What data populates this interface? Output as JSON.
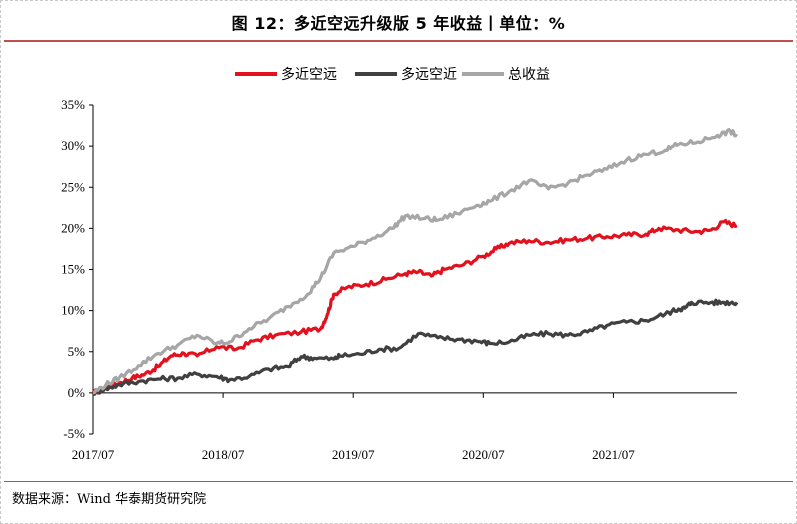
{
  "header": {
    "title": "图 12：多近空远升级版 5 年收益丨单位：%"
  },
  "footer": {
    "source": "数据来源：Wind 华泰期货研究院"
  },
  "colors": {
    "series_red": "#e3101e",
    "series_dark": "#404040",
    "series_gray": "#a6a6a6",
    "rule": "#c0504d"
  },
  "chart_data": {
    "type": "line",
    "title": "",
    "xlabel": "",
    "ylabel": "",
    "ylim": [
      -5,
      35
    ],
    "y_ticks": [
      -5,
      0,
      5,
      10,
      15,
      20,
      25,
      30,
      35
    ],
    "y_tick_labels": [
      "-5%",
      "0%",
      "5%",
      "10%",
      "15%",
      "20%",
      "25%",
      "30%",
      "35%"
    ],
    "x_range": [
      2017.5,
      2022.45
    ],
    "x_ticks": [
      2017.5,
      2018.5,
      2019.5,
      2020.5,
      2021.5
    ],
    "x_tick_labels": [
      "2017/07",
      "2018/07",
      "2019/07",
      "2020/07",
      "2021/07"
    ],
    "grid": false,
    "legend_position": "top",
    "series": [
      {
        "name": "多近空远",
        "color": "#e3101e",
        "points": [
          [
            2017.5,
            0.0
          ],
          [
            2017.6,
            0.6
          ],
          [
            2017.7,
            1.2
          ],
          [
            2017.8,
            1.8
          ],
          [
            2017.9,
            2.3
          ],
          [
            2018.0,
            3.2
          ],
          [
            2018.1,
            4.5
          ],
          [
            2018.2,
            4.8
          ],
          [
            2018.3,
            4.5
          ],
          [
            2018.45,
            5.6
          ],
          [
            2018.6,
            5.3
          ],
          [
            2018.75,
            6.4
          ],
          [
            2018.9,
            7.0
          ],
          [
            2019.1,
            7.4
          ],
          [
            2019.25,
            7.8
          ],
          [
            2019.3,
            9.5
          ],
          [
            2019.35,
            12.0
          ],
          [
            2019.45,
            12.8
          ],
          [
            2019.6,
            13.2
          ],
          [
            2019.75,
            13.8
          ],
          [
            2019.9,
            14.5
          ],
          [
            2020.0,
            14.7
          ],
          [
            2020.1,
            14.2
          ],
          [
            2020.2,
            15.0
          ],
          [
            2020.35,
            15.6
          ],
          [
            2020.5,
            16.6
          ],
          [
            2020.6,
            17.5
          ],
          [
            2020.7,
            18.2
          ],
          [
            2020.85,
            18.5
          ],
          [
            2021.0,
            18.3
          ],
          [
            2021.15,
            18.6
          ],
          [
            2021.3,
            18.8
          ],
          [
            2021.45,
            19.0
          ],
          [
            2021.6,
            19.2
          ],
          [
            2021.75,
            19.3
          ],
          [
            2021.85,
            20.0
          ],
          [
            2022.0,
            19.8
          ],
          [
            2022.15,
            19.6
          ],
          [
            2022.25,
            19.8
          ],
          [
            2022.35,
            20.8
          ],
          [
            2022.45,
            20.3
          ]
        ]
      },
      {
        "name": "多远空近",
        "color": "#404040",
        "points": [
          [
            2017.5,
            0.0
          ],
          [
            2017.6,
            0.5
          ],
          [
            2017.7,
            1.0
          ],
          [
            2017.85,
            1.4
          ],
          [
            2018.0,
            1.7
          ],
          [
            2018.15,
            1.8
          ],
          [
            2018.3,
            2.3
          ],
          [
            2018.45,
            2.0
          ],
          [
            2018.55,
            1.6
          ],
          [
            2018.7,
            2.0
          ],
          [
            2018.85,
            2.9
          ],
          [
            2019.0,
            3.2
          ],
          [
            2019.1,
            4.4
          ],
          [
            2019.2,
            4.2
          ],
          [
            2019.35,
            4.1
          ],
          [
            2019.4,
            4.5
          ],
          [
            2019.55,
            4.7
          ],
          [
            2019.7,
            5.3
          ],
          [
            2019.85,
            5.4
          ],
          [
            2020.0,
            7.2
          ],
          [
            2020.15,
            6.7
          ],
          [
            2020.3,
            6.5
          ],
          [
            2020.45,
            6.3
          ],
          [
            2020.55,
            6.0
          ],
          [
            2020.7,
            6.2
          ],
          [
            2020.85,
            7.0
          ],
          [
            2021.0,
            7.2
          ],
          [
            2021.15,
            7.0
          ],
          [
            2021.3,
            7.4
          ],
          [
            2021.45,
            8.2
          ],
          [
            2021.6,
            8.6
          ],
          [
            2021.75,
            8.8
          ],
          [
            2021.9,
            9.6
          ],
          [
            2022.0,
            10.2
          ],
          [
            2022.05,
            10.3
          ],
          [
            2022.1,
            11.0
          ],
          [
            2022.25,
            11.0
          ],
          [
            2022.35,
            11.0
          ],
          [
            2022.45,
            11.0
          ]
        ]
      },
      {
        "name": "总收益",
        "color": "#a6a6a6",
        "points": [
          [
            2017.5,
            0.0
          ],
          [
            2017.6,
            1.0
          ],
          [
            2017.7,
            1.8
          ],
          [
            2017.85,
            3.3
          ],
          [
            2018.0,
            4.8
          ],
          [
            2018.15,
            5.8
          ],
          [
            2018.3,
            7.0
          ],
          [
            2018.45,
            6.0
          ],
          [
            2018.55,
            6.2
          ],
          [
            2018.7,
            7.8
          ],
          [
            2018.85,
            9.0
          ],
          [
            2019.0,
            10.5
          ],
          [
            2019.15,
            12.0
          ],
          [
            2019.25,
            14.0
          ],
          [
            2019.35,
            17.0
          ],
          [
            2019.5,
            17.8
          ],
          [
            2019.65,
            18.8
          ],
          [
            2019.8,
            20.0
          ],
          [
            2019.9,
            21.5
          ],
          [
            2020.05,
            21.2
          ],
          [
            2020.15,
            21.0
          ],
          [
            2020.3,
            21.8
          ],
          [
            2020.45,
            22.8
          ],
          [
            2020.55,
            23.3
          ],
          [
            2020.7,
            24.5
          ],
          [
            2020.85,
            25.8
          ],
          [
            2021.0,
            24.8
          ],
          [
            2021.15,
            25.5
          ],
          [
            2021.3,
            26.5
          ],
          [
            2021.45,
            27.2
          ],
          [
            2021.6,
            28.3
          ],
          [
            2021.75,
            29.0
          ],
          [
            2021.9,
            29.5
          ],
          [
            2022.0,
            30.2
          ],
          [
            2022.15,
            30.5
          ],
          [
            2022.3,
            31.3
          ],
          [
            2022.4,
            31.8
          ],
          [
            2022.45,
            31.2
          ]
        ]
      }
    ]
  }
}
